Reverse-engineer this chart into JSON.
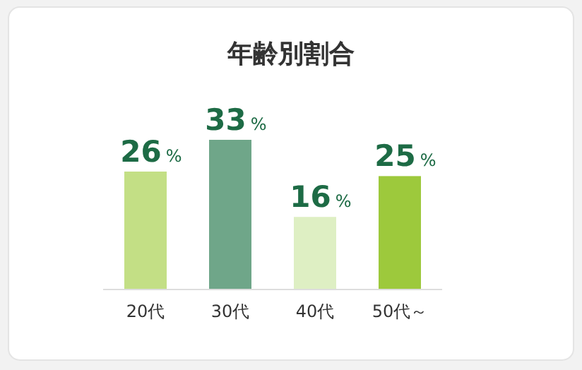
{
  "chart_data": {
    "type": "bar",
    "title": "年齢別割合",
    "categories": [
      "20代",
      "30代",
      "40代",
      "50代～"
    ],
    "values": [
      26,
      33,
      16,
      25
    ],
    "colors": [
      "#c3df85",
      "#6fa689",
      "#deefc3",
      "#9dc93c"
    ],
    "value_labels": [
      "26%",
      "33%",
      "16%",
      "25%"
    ]
  }
}
